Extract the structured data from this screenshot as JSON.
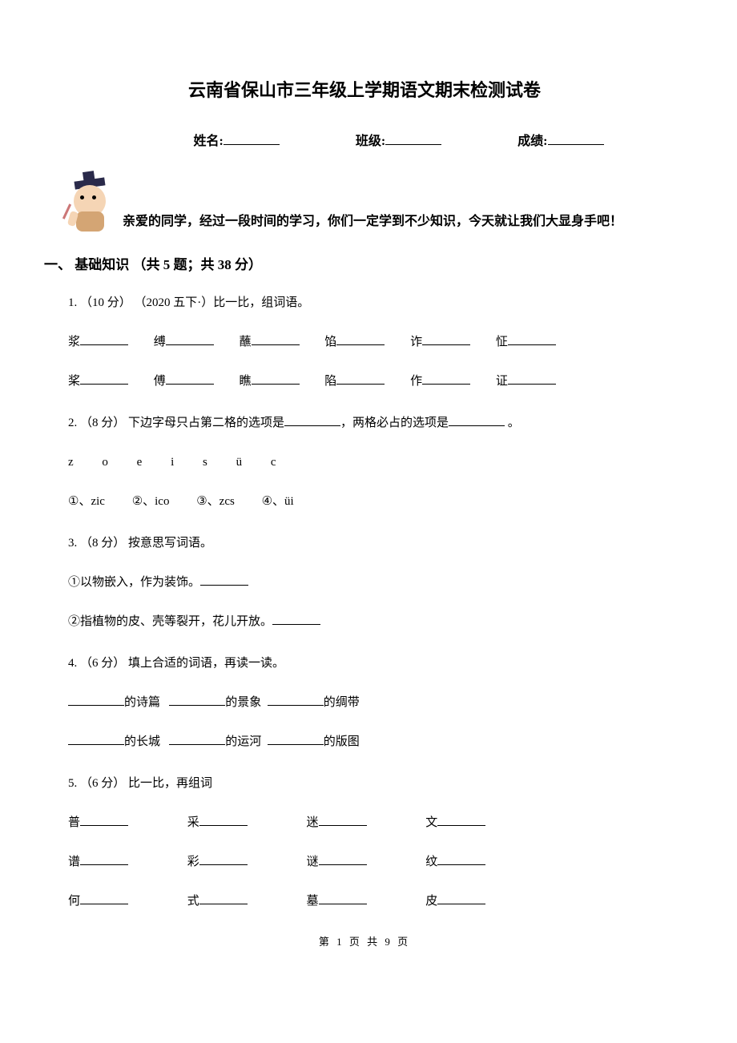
{
  "title": "云南省保山市三年级上学期语文期末检测试卷",
  "info": {
    "name_label": "姓名:",
    "class_label": "班级:",
    "score_label": "成绩:"
  },
  "greeting": "亲爱的同学，经过一段时间的学习，你们一定学到不少知识，今天就让我们大显身手吧！",
  "section1": {
    "header": "一、 基础知识 （共 5 题；共 38 分）",
    "q1": {
      "prompt": "1. （10 分） （2020 五下·）比一比，组词语。",
      "row1": [
        "浆",
        "缚",
        "蘸",
        "馅",
        "诈",
        "怔"
      ],
      "row2": [
        "桨",
        "傅",
        "瞧",
        "陷",
        "作",
        "证"
      ]
    },
    "q2": {
      "prompt_a": "2. （8 分） 下边字母只占第二格的选项是",
      "prompt_b": "，两格必占的选项是",
      "prompt_c": " 。",
      "letters": "z o e i s ü c",
      "options": [
        "①、zic",
        "②、ico",
        "③、zcs",
        "④、üi"
      ]
    },
    "q3": {
      "prompt": "3. （8 分） 按意思写词语。",
      "item1": "①以物嵌入，作为装饰。",
      "item2": "②指植物的皮、壳等裂开，花儿开放。"
    },
    "q4": {
      "prompt": "4. （6 分） 填上合适的词语，再读一读。",
      "row1": [
        "的诗篇",
        "的景象",
        "的绸带"
      ],
      "row2": [
        "的长城",
        "的运河",
        "的版图"
      ]
    },
    "q5": {
      "prompt": "5. （6 分） 比一比，再组词",
      "row1": [
        "普",
        "采",
        "迷",
        "文"
      ],
      "row2": [
        "谱",
        "彩",
        "谜",
        "纹"
      ],
      "row3": [
        "何",
        "式",
        "墓",
        "皮"
      ]
    }
  },
  "footer": "第 1 页 共 9 页"
}
